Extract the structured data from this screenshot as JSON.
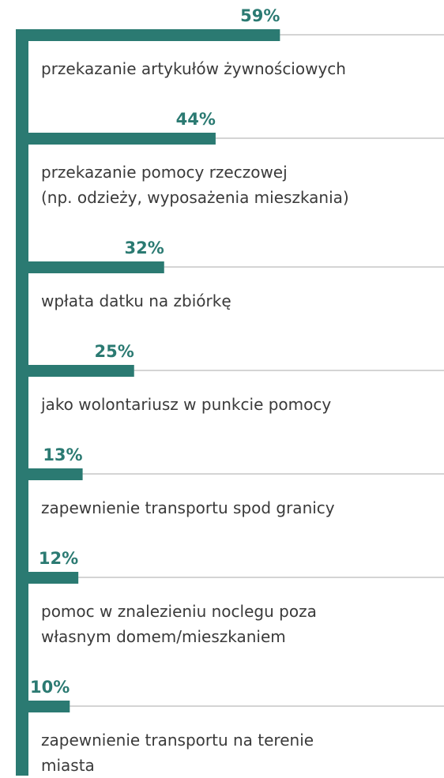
{
  "chart_data": {
    "type": "bar",
    "orientation": "horizontal",
    "color": "#2b7a72",
    "categories": [
      "przekazanie artykułów żywnościowych",
      "przekazanie pomocy rzeczowej\n(np. odzieży, wyposażenia mieszkania)",
      "wpłata datku na zbiórkę",
      "jako wolontariusz w punkcie pomocy",
      "zapewnienie transportu spod granicy",
      "pomoc w znalezieniu noclegu poza\nwłasnym domem/mieszkaniem",
      "zapewnienie transportu na terenie\nmiasta"
    ],
    "values": [
      59,
      44,
      32,
      25,
      13,
      12,
      10
    ],
    "value_labels": [
      "59%",
      "44%",
      "32%",
      "25%",
      "13%",
      "12%",
      "10%"
    ]
  }
}
